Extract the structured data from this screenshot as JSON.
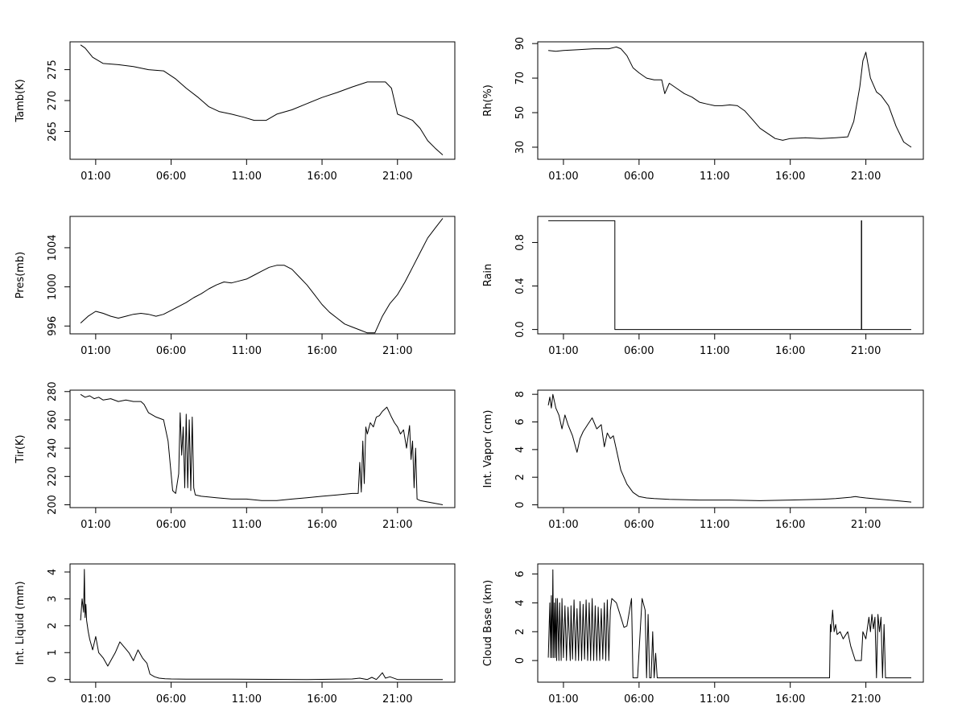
{
  "chart_data": [
    {
      "type": "line",
      "ylabel": "Tamb(K)",
      "x_ticks": [
        "01:00",
        "06:00",
        "11:00",
        "16:00",
        "21:00"
      ],
      "y_ticks": [
        265,
        270,
        275
      ],
      "ylim": [
        260.5,
        279.5
      ],
      "grid": false,
      "series": [
        {
          "x": [
            0.0,
            0.3,
            0.8,
            1.5,
            2.5,
            3.5,
            4.5,
            5.5,
            6.3,
            7.0,
            7.8,
            8.5,
            9.2,
            10.0,
            10.8,
            11.5,
            12.3,
            13.0,
            14.0,
            15.0,
            16.0,
            17.0,
            18.0,
            19.0,
            19.8,
            20.2,
            20.6,
            21.0,
            21.5,
            22.0,
            22.5,
            23.0,
            23.5,
            24.0
          ],
          "y": [
            279.0,
            278.5,
            277.0,
            276.0,
            275.8,
            275.5,
            275.0,
            274.8,
            273.5,
            272.0,
            270.5,
            269.0,
            268.2,
            267.8,
            267.3,
            266.8,
            266.8,
            267.8,
            268.5,
            269.5,
            270.5,
            271.3,
            272.2,
            273.0,
            273.0,
            273.0,
            272.0,
            267.8,
            267.3,
            266.8,
            265.5,
            263.5,
            262.3,
            261.2
          ]
        }
      ]
    },
    {
      "type": "line",
      "ylabel": "Rh(%)",
      "x_ticks": [
        "01:00",
        "06:00",
        "11:00",
        "16:00",
        "21:00"
      ],
      "y_ticks": [
        30,
        50,
        70,
        90
      ],
      "ylim": [
        23,
        91
      ],
      "grid": false,
      "series": [
        {
          "x": [
            0.0,
            0.5,
            1.0,
            2.0,
            3.0,
            4.0,
            4.5,
            4.8,
            5.2,
            5.6,
            6.0,
            6.5,
            7.0,
            7.5,
            7.7,
            8.0,
            8.5,
            9.0,
            9.5,
            10.0,
            10.5,
            11.0,
            11.5,
            12.0,
            12.5,
            13.0,
            13.5,
            14.0,
            14.5,
            15.0,
            15.5,
            16.0,
            17.0,
            18.0,
            19.0,
            19.8,
            20.2,
            20.6,
            20.8,
            21.0,
            21.3,
            21.7,
            22.0,
            22.5,
            23.0,
            23.5,
            24.0
          ],
          "y": [
            86,
            85.5,
            86,
            86.5,
            87,
            87,
            88,
            87,
            83,
            76,
            73,
            70,
            69,
            69,
            61,
            67,
            64,
            61,
            59,
            56,
            55,
            54,
            54,
            54.5,
            54,
            51,
            46,
            41,
            38,
            35,
            34,
            35,
            35.5,
            35,
            35.5,
            36,
            45,
            65,
            80,
            85,
            70,
            62,
            60,
            54,
            42,
            33,
            30
          ]
        }
      ]
    },
    {
      "type": "line",
      "ylabel": "Pres(mb)",
      "x_ticks": [
        "01:00",
        "06:00",
        "11:00",
        "16:00",
        "21:00"
      ],
      "y_ticks": [
        996,
        1000,
        1004
      ],
      "ylim": [
        995.2,
        1007.2
      ],
      "grid": false,
      "series": [
        {
          "x": [
            0.0,
            0.5,
            1.0,
            1.5,
            2.0,
            2.5,
            3.0,
            3.5,
            4.0,
            4.5,
            5.0,
            5.5,
            6.0,
            6.5,
            7.0,
            7.5,
            8.0,
            8.5,
            9.0,
            9.5,
            10.0,
            10.5,
            11.0,
            11.5,
            12.0,
            12.5,
            13.0,
            13.5,
            14.0,
            14.5,
            15.0,
            15.5,
            16.0,
            16.5,
            17.0,
            17.5,
            18.0,
            18.5,
            19.0,
            19.5,
            20.0,
            20.5,
            21.0,
            21.5,
            22.0,
            22.5,
            23.0,
            23.5,
            24.0
          ],
          "y": [
            996.3,
            997.0,
            997.5,
            997.3,
            997.0,
            996.8,
            997.0,
            997.2,
            997.3,
            997.2,
            997.0,
            997.2,
            997.6,
            998.0,
            998.4,
            998.9,
            999.3,
            999.8,
            1000.2,
            1000.5,
            1000.4,
            1000.6,
            1000.8,
            1001.2,
            1001.6,
            1002.0,
            1002.2,
            1002.2,
            1001.8,
            1001.0,
            1000.2,
            999.2,
            998.2,
            997.4,
            996.8,
            996.2,
            995.9,
            995.6,
            995.3,
            995.3,
            997.0,
            998.3,
            999.2,
            1000.5,
            1002.0,
            1003.5,
            1005.0,
            1006.0,
            1007.0
          ]
        }
      ]
    },
    {
      "type": "line",
      "ylabel": "Rain",
      "x_ticks": [
        "01:00",
        "06:00",
        "11:00",
        "16:00",
        "21:00"
      ],
      "y_ticks": [
        "0.0",
        "0.4",
        "0.8"
      ],
      "ylim": [
        -0.04,
        1.04
      ],
      "grid": false,
      "series": [
        {
          "x": [
            0.0,
            4.4,
            4.4,
            20.7,
            20.7,
            20.72,
            20.72,
            24.0
          ],
          "y": [
            1,
            1,
            0,
            0,
            1,
            1,
            0,
            0
          ]
        }
      ]
    },
    {
      "type": "line",
      "ylabel": "Tir(K)",
      "x_ticks": [
        "01:00",
        "06:00",
        "11:00",
        "16:00",
        "21:00"
      ],
      "y_ticks": [
        200,
        220,
        240,
        260,
        280
      ],
      "ylim": [
        198,
        281
      ],
      "grid": false,
      "series": [
        {
          "x": [
            0.0,
            0.3,
            0.6,
            0.9,
            1.2,
            1.5,
            2.0,
            2.5,
            3.0,
            3.5,
            4.0,
            4.2,
            4.5,
            5.0,
            5.5,
            5.8,
            6.1,
            6.3,
            6.5,
            6.6,
            6.7,
            6.8,
            6.9,
            7.0,
            7.1,
            7.2,
            7.3,
            7.4,
            7.5,
            7.6,
            8.0,
            9.0,
            10.0,
            11.0,
            12.0,
            13.0,
            14.0,
            15.0,
            16.0,
            17.0,
            18.0,
            18.4,
            18.5,
            18.6,
            18.7,
            18.8,
            18.9,
            19.0,
            19.2,
            19.4,
            19.6,
            19.8,
            20.0,
            20.3,
            20.6,
            20.8,
            21.0,
            21.2,
            21.4,
            21.6,
            21.8,
            21.9,
            22.0,
            22.1,
            22.2,
            22.3,
            22.5,
            23.0,
            23.5,
            24.0
          ],
          "y": [
            278,
            276,
            277,
            275,
            276,
            274,
            275,
            273,
            274,
            273,
            273,
            271,
            265,
            262,
            260,
            245,
            210,
            208,
            222,
            265,
            235,
            255,
            212,
            264,
            212,
            260,
            210,
            262,
            212,
            207,
            206,
            205,
            204,
            204,
            203,
            203,
            204,
            205,
            206,
            207,
            208,
            208,
            230,
            209,
            245,
            215,
            255,
            250,
            258,
            255,
            262,
            263,
            266,
            269,
            262,
            258,
            255,
            250,
            253,
            240,
            256,
            232,
            245,
            212,
            240,
            204,
            203,
            202,
            201,
            200
          ]
        }
      ]
    },
    {
      "type": "line",
      "ylabel": "Int. Vapor (cm)",
      "x_ticks": [
        "01:00",
        "06:00",
        "11:00",
        "16:00",
        "21:00"
      ],
      "y_ticks": [
        0,
        2,
        4,
        6,
        8
      ],
      "ylim": [
        -0.2,
        8.3
      ],
      "grid": false,
      "series": [
        {
          "x": [
            0.0,
            0.1,
            0.2,
            0.3,
            0.5,
            0.7,
            0.9,
            1.1,
            1.3,
            1.6,
            1.9,
            2.1,
            2.3,
            2.6,
            2.9,
            3.2,
            3.5,
            3.7,
            3.9,
            4.1,
            4.3,
            4.5,
            4.8,
            5.2,
            5.6,
            6.0,
            6.5,
            7.0,
            8.0,
            10.0,
            12.0,
            14.0,
            16.0,
            18.0,
            19.0,
            20.0,
            20.3,
            20.6,
            21.0,
            22.0,
            23.0,
            24.0
          ],
          "y": [
            7.2,
            7.8,
            7.0,
            8.0,
            7.0,
            6.5,
            5.5,
            6.5,
            5.8,
            5.0,
            3.8,
            4.8,
            5.3,
            5.8,
            6.3,
            5.5,
            5.8,
            4.2,
            5.2,
            4.8,
            5.0,
            4.0,
            2.5,
            1.5,
            0.9,
            0.6,
            0.5,
            0.45,
            0.4,
            0.35,
            0.35,
            0.3,
            0.35,
            0.4,
            0.45,
            0.55,
            0.6,
            0.55,
            0.5,
            0.4,
            0.3,
            0.2
          ]
        }
      ]
    },
    {
      "type": "line",
      "ylabel": "Int. Liquid (mm)",
      "x_ticks": [
        "01:00",
        "06:00",
        "11:00",
        "16:00",
        "21:00"
      ],
      "y_ticks": [
        0,
        1,
        2,
        3,
        4
      ],
      "ylim": [
        -0.1,
        4.3
      ],
      "grid": false,
      "series": [
        {
          "x": [
            0.0,
            0.1,
            0.2,
            0.25,
            0.3,
            0.35,
            0.4,
            0.5,
            0.6,
            0.8,
            1.0,
            1.2,
            1.5,
            1.8,
            2.0,
            2.3,
            2.6,
            2.9,
            3.2,
            3.5,
            3.8,
            4.1,
            4.4,
            4.6,
            4.9,
            5.2,
            5.6,
            6.0,
            7.0,
            10.0,
            15.0,
            18.0,
            18.5,
            19.0,
            19.3,
            19.6,
            19.8,
            20.0,
            20.2,
            20.5,
            21.0,
            22.0,
            23.0,
            24.0
          ],
          "y": [
            2.2,
            3.0,
            2.5,
            4.1,
            2.3,
            2.8,
            2.2,
            1.8,
            1.5,
            1.1,
            1.6,
            1.0,
            0.8,
            0.5,
            0.7,
            1.0,
            1.4,
            1.2,
            1.0,
            0.7,
            1.1,
            0.8,
            0.6,
            0.2,
            0.1,
            0.05,
            0.03,
            0.02,
            0.01,
            0.01,
            0.0,
            0.02,
            0.05,
            0.0,
            0.08,
            0.0,
            0.12,
            0.25,
            0.05,
            0.1,
            0.0,
            0.0,
            0.0,
            0.0
          ]
        }
      ]
    },
    {
      "type": "line",
      "ylabel": "Cloud Base (km)",
      "x_ticks": [
        "01:00",
        "06:00",
        "11:00",
        "16:00",
        "21:00"
      ],
      "y_ticks": [
        0,
        2,
        4,
        6
      ],
      "ylim": [
        -1.5,
        6.7
      ],
      "grid": false,
      "series": [
        {
          "x": [
            0.0,
            0.1,
            0.15,
            0.2,
            0.25,
            0.3,
            0.35,
            0.4,
            0.45,
            0.5,
            0.55,
            0.6,
            0.7,
            0.75,
            0.85,
            0.9,
            1.0,
            1.1,
            1.2,
            1.3,
            1.45,
            1.5,
            1.6,
            1.7,
            1.8,
            1.9,
            2.0,
            2.1,
            2.2,
            2.3,
            2.4,
            2.5,
            2.6,
            2.7,
            2.8,
            2.9,
            3.0,
            3.1,
            3.2,
            3.3,
            3.4,
            3.5,
            3.6,
            3.7,
            3.8,
            3.9,
            4.0,
            4.1,
            4.2,
            4.5,
            4.8,
            5.0,
            5.2,
            5.5,
            5.6,
            5.7,
            5.9,
            6.2,
            6.4,
            6.5,
            6.6,
            6.7,
            6.8,
            6.9,
            7.0,
            7.1,
            7.2,
            7.3,
            8.0,
            12.0,
            17.0,
            18.6,
            18.65,
            18.7,
            18.8,
            18.9,
            19.0,
            19.1,
            19.3,
            19.5,
            19.8,
            20.0,
            20.3,
            20.5,
            20.7,
            20.8,
            21.0,
            21.2,
            21.3,
            21.4,
            21.5,
            21.6,
            21.7,
            21.8,
            21.9,
            22.0,
            22.1,
            22.2,
            22.3,
            22.35,
            22.4,
            23.0,
            24.0
          ],
          "y": [
            0.2,
            4.0,
            0.2,
            4.5,
            0.2,
            6.3,
            0.2,
            4.0,
            0.2,
            4.3,
            0.0,
            4.3,
            0.0,
            4.0,
            0.0,
            4.3,
            0.2,
            3.8,
            0.0,
            3.7,
            0.0,
            3.8,
            0.1,
            4.2,
            0.0,
            3.6,
            0.0,
            4.1,
            0.0,
            3.9,
            0.1,
            4.2,
            0.0,
            4.0,
            0.0,
            4.3,
            0.0,
            3.8,
            0.0,
            3.7,
            0.0,
            3.6,
            0.1,
            4.0,
            0.0,
            4.2,
            0.0,
            3.5,
            4.3,
            4.0,
            3.0,
            2.3,
            2.4,
            4.3,
            -1.2,
            -1.2,
            -1.2,
            4.3,
            3.5,
            -1.2,
            3.2,
            -1.2,
            -1.2,
            2.0,
            -1.2,
            0.5,
            -1.2,
            -1.2,
            -1.2,
            -1.2,
            -1.2,
            -1.2,
            2.5,
            2.0,
            3.5,
            2.0,
            2.5,
            1.8,
            2.0,
            1.5,
            2.0,
            1.0,
            0.0,
            0.0,
            0.0,
            2.0,
            1.5,
            3.0,
            2.0,
            3.2,
            2.2,
            3.0,
            -1.2,
            3.2,
            2.0,
            3.0,
            -1.2,
            2.5,
            -1.2,
            -1.2,
            -1.2,
            -1.2,
            -1.2
          ]
        }
      ]
    }
  ]
}
